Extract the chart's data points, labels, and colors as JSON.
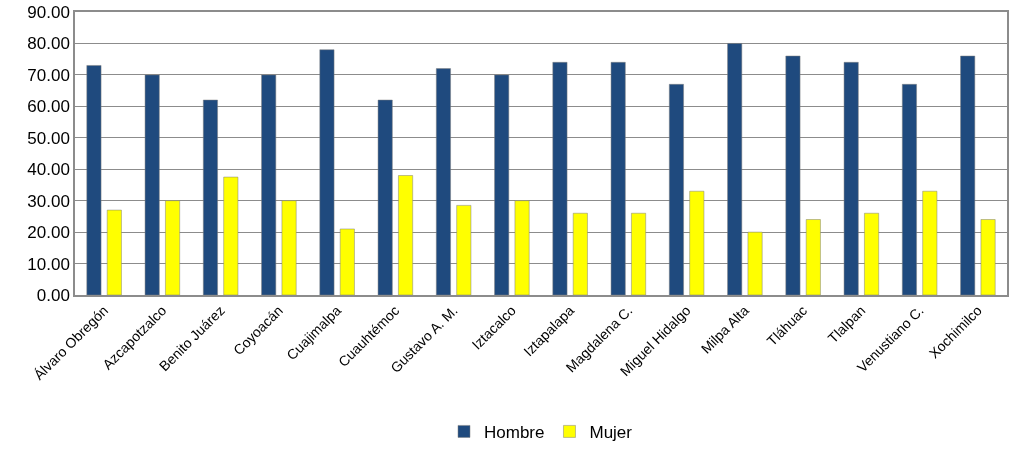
{
  "chart_data": {
    "type": "bar",
    "categories": [
      "Álvaro Obregón",
      "Azcapotzalco",
      "Benito Juárez",
      "Coyoacán",
      "Cuajimalpa",
      "Cuauhtémoc",
      "Gustavo A. M.",
      "Iztacalco",
      "Iztapalapa",
      "Magdalena C.",
      "Miguel Hidalgo",
      "Milpa Alta",
      "Tláhuac",
      "Tlalpan",
      "Venustiano C.",
      "Xochimilco"
    ],
    "series": [
      {
        "name": "Hombre",
        "color": "#1f4a7e",
        "values": [
          73,
          70,
          62,
          70,
          78,
          62,
          72,
          70,
          74,
          74,
          67,
          80,
          76,
          74,
          67,
          76
        ]
      },
      {
        "name": "Mujer",
        "color": "#ffff00",
        "values": [
          27,
          30,
          37.5,
          30,
          21,
          38,
          28.5,
          30,
          26,
          26,
          33,
          20,
          24,
          26,
          33,
          24
        ]
      }
    ],
    "ylim": [
      0,
      90
    ],
    "yticks": [
      {
        "value": 0,
        "label": "0.00"
      },
      {
        "value": 10,
        "label": "10.00"
      },
      {
        "value": 20,
        "label": "20.00"
      },
      {
        "value": 30,
        "label": "30.00"
      },
      {
        "value": 40,
        "label": "40.00"
      },
      {
        "value": 50,
        "label": "50.00"
      },
      {
        "value": 60,
        "label": "60.00"
      },
      {
        "value": 70,
        "label": "70.00"
      },
      {
        "value": 80,
        "label": "80.00"
      },
      {
        "value": 90,
        "label": "90.00"
      }
    ],
    "grid": "y",
    "legend": "bottom"
  }
}
